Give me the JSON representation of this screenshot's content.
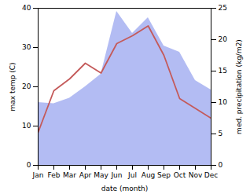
{
  "chart_data": {
    "type": "line",
    "categories": [
      "Jan",
      "Feb",
      "Mar",
      "Apr",
      "May",
      "Jun",
      "Jul",
      "Aug",
      "Sep",
      "Oct",
      "Nov",
      "Dec"
    ],
    "x_label": "date (month)",
    "y_label": "max temp (C)",
    "y2_label": "med. precipitation (kg/m2)",
    "ylim": [
      0,
      40
    ],
    "yticks": [
      0,
      10,
      20,
      30,
      40
    ],
    "y2lim": [
      0,
      25
    ],
    "y2ticks": [
      0,
      5,
      10,
      15,
      20,
      25
    ],
    "series": [
      {
        "type": "area",
        "axis": "y2",
        "color": "#b3bcf3",
        "values": [
          10,
          9.8,
          10.7,
          12.5,
          14.5,
          24.5,
          21,
          23.5,
          19,
          18,
          13.5,
          12
        ]
      },
      {
        "type": "line",
        "color": "#c45a5a",
        "values": [
          8.4,
          19,
          22,
          26,
          23.5,
          31,
          33,
          35.5,
          28,
          17,
          14.5,
          12
        ]
      }
    ]
  }
}
